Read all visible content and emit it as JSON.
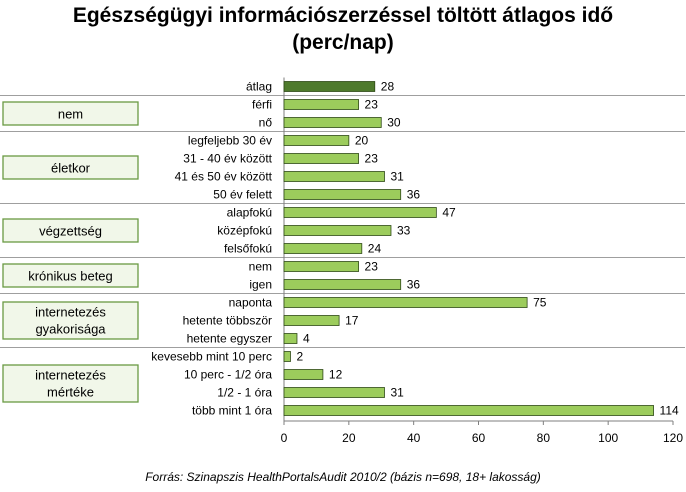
{
  "title_line1": "Egészségügyi információszerzéssel töltött átlagos idő",
  "title_line2": "(perc/nap)",
  "source": "Forrás: Szinapszis HealthPortalsAudit 2010/2 (bázis n=698, 18+ lakosság)",
  "colors": {
    "bar": "#9ccc5c",
    "bar_highlight": "#4e7a2c",
    "bar_stroke": "#2f4a17",
    "grid": "#7f7f7f"
  },
  "chart_data": {
    "type": "bar",
    "orientation": "horizontal",
    "categories": [
      "átlag",
      "férfi",
      "nő",
      "legfeljebb 30 év",
      "31 - 40 év között",
      "41 és 50 év között",
      "50 év felett",
      "alapfokú",
      "középfokú",
      "felsőfokú",
      "nem",
      "igen",
      "naponta",
      "hetente többször",
      "hetente egyszer",
      "kevesebb mint 10 perc",
      "10 perc - 1/2 óra",
      "1/2 - 1 óra",
      "több mint 1 óra"
    ],
    "values": [
      28,
      23,
      30,
      20,
      23,
      31,
      36,
      47,
      33,
      24,
      23,
      36,
      75,
      17,
      4,
      2,
      12,
      31,
      114
    ],
    "highlight_index": 0,
    "xlim": [
      0,
      120
    ],
    "xticks": [
      0,
      20,
      40,
      60,
      80,
      100,
      120
    ],
    "groups": [
      {
        "label": [
          "nem"
        ],
        "start": 1,
        "end": 2
      },
      {
        "label": [
          "életkor"
        ],
        "start": 3,
        "end": 6
      },
      {
        "label": [
          "végzettség"
        ],
        "start": 7,
        "end": 9
      },
      {
        "label": [
          "krónikus beteg"
        ],
        "start": 10,
        "end": 11
      },
      {
        "label": [
          "internetezés",
          "gyakorisága"
        ],
        "start": 12,
        "end": 14
      },
      {
        "label": [
          "internetezés",
          "mértéke"
        ],
        "start": 15,
        "end": 18
      }
    ]
  }
}
